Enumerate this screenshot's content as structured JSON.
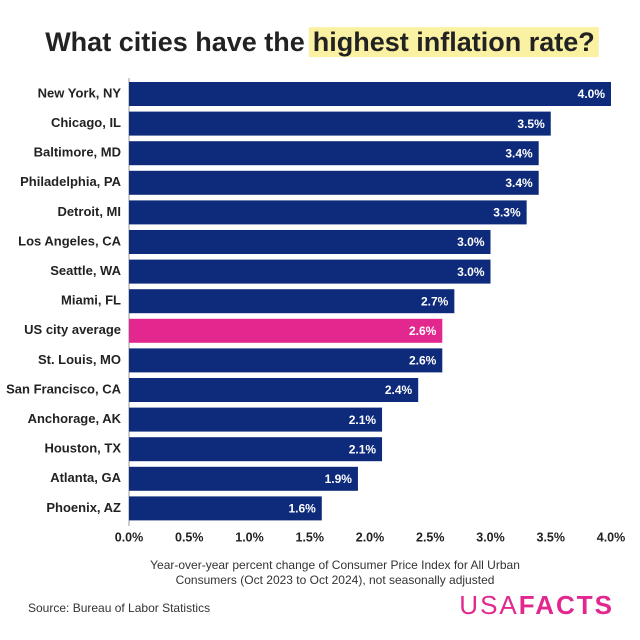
{
  "chart_data": {
    "type": "hbar",
    "title_parts": [
      "What cities have the",
      "highest inflation rate?"
    ],
    "title_highlight_color": "#fbf1a3",
    "categories": [
      "New York, NY",
      "Chicago, IL",
      "Baltimore, MD",
      "Philadelphia, PA",
      "Detroit, MI",
      "Los Angeles, CA",
      "Seattle, WA",
      "Miami, FL",
      "US city average",
      "St. Louis, MO",
      "San Francisco, CA",
      "Anchorage, AK",
      "Houston, TX",
      "Atlanta, GA",
      "Phoenix, AZ"
    ],
    "values": [
      4.0,
      3.5,
      3.4,
      3.4,
      3.3,
      3.0,
      3.0,
      2.7,
      2.6,
      2.6,
      2.4,
      2.1,
      2.1,
      1.9,
      1.6
    ],
    "value_labels": [
      "4.0%",
      "3.5%",
      "3.4%",
      "3.4%",
      "3.3%",
      "3.0%",
      "3.0%",
      "2.7%",
      "2.6%",
      "2.6%",
      "2.4%",
      "2.1%",
      "2.1%",
      "1.9%",
      "1.6%"
    ],
    "colors": [
      "#0e2b7b",
      "#0e2b7b",
      "#0e2b7b",
      "#0e2b7b",
      "#0e2b7b",
      "#0e2b7b",
      "#0e2b7b",
      "#0e2b7b",
      "#e2288e",
      "#0e2b7b",
      "#0e2b7b",
      "#0e2b7b",
      "#0e2b7b",
      "#0e2b7b",
      "#0e2b7b"
    ],
    "xlim": [
      0,
      4
    ],
    "xticks": [
      {
        "value": 0,
        "label": "0.0%"
      },
      {
        "value": 0.5,
        "label": "0.5%"
      },
      {
        "value": 1,
        "label": "1.0%"
      },
      {
        "value": 1.5,
        "label": "1.5%"
      },
      {
        "value": 2,
        "label": "2.0%"
      },
      {
        "value": 2.5,
        "label": "2.5%"
      },
      {
        "value": 3,
        "label": "3.0%"
      },
      {
        "value": 3.5,
        "label": "3.5%"
      },
      {
        "value": 4,
        "label": "4.0%"
      }
    ],
    "xlabel": [
      "Year-over-year percent change of Consumer Price Index for All Urban",
      "Consumers (Oct 2023 to Oct 2024), not seasonally adjusted"
    ],
    "source": "Source: Bureau of Labor Statistics",
    "logo": [
      "USA",
      "FACTS"
    ],
    "logo_color": "#e2288e"
  }
}
